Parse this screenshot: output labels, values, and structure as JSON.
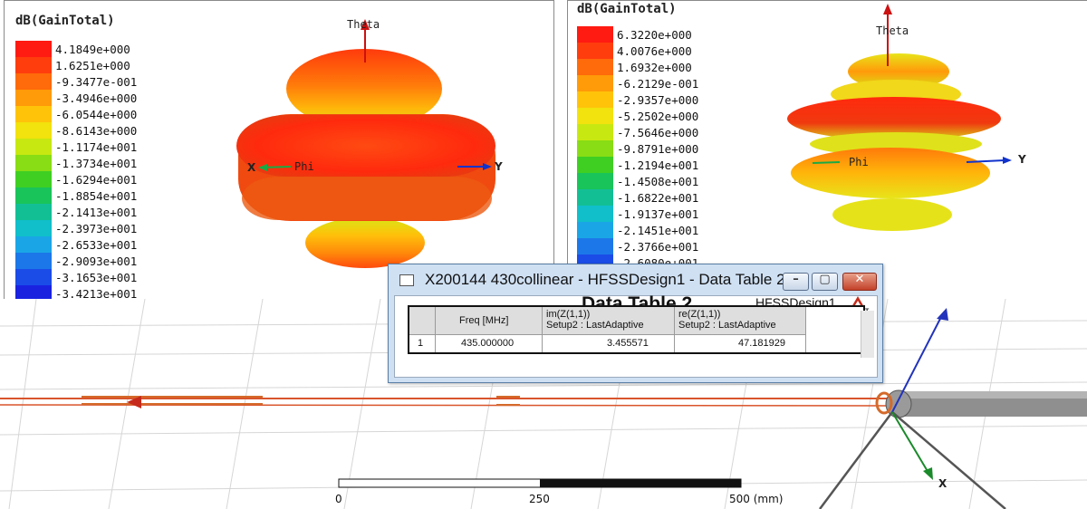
{
  "left_plot": {
    "legend_title": "dB(GainTotal)",
    "legend_values": [
      "4.1849e+000",
      "1.6251e+000",
      "-9.3477e-001",
      "-3.4946e+000",
      "-6.0544e+000",
      "-8.6143e+000",
      "-1.1174e+001",
      "-1.3734e+001",
      "-1.6294e+001",
      "-1.8854e+001",
      "-2.1413e+001",
      "-2.3973e+001",
      "-2.6533e+001",
      "-2.9093e+001",
      "-3.1653e+001",
      "-3.4213e+001"
    ],
    "axis_theta": "Theta",
    "axis_phi": "Phi",
    "axis_x": "X",
    "axis_y": "Y"
  },
  "right_plot": {
    "legend_title": "dB(GainTotal)",
    "legend_values": [
      "6.3220e+000",
      "4.0076e+000",
      "1.6932e+000",
      "-6.2129e-001",
      "-2.9357e+000",
      "-5.2502e+000",
      "-7.5646e+000",
      "-9.8791e+000",
      "-1.2194e+001",
      "-1.4508e+001",
      "-1.6822e+001",
      "-1.9137e+001",
      "-2.1451e+001",
      "-2.3766e+001",
      "-2.6080e+001"
    ],
    "axis_theta": "Theta",
    "axis_phi": "Phi",
    "axis_y": "Y"
  },
  "legend_colors": [
    "#ff1a12",
    "#ff3d0d",
    "#ff6a0a",
    "#ff9a08",
    "#ffc30a",
    "#f2e20d",
    "#c8e812",
    "#88dd14",
    "#3fcf23",
    "#19c45a",
    "#12bf95",
    "#10bfca",
    "#1aa6e6",
    "#1c78e8",
    "#1b4ce8",
    "#1a22e0"
  ],
  "model_view": {
    "scale_labels": [
      "0",
      "250",
      "500 (mm)"
    ],
    "axis_x": "X"
  },
  "data_table_window": {
    "title": "X200144 430collinear - HFSSDesign1 - Data Table 2",
    "heading": "Data Table 2",
    "design_name": "HFSSDesign1",
    "logo_text": "ANSOFT",
    "btn_minimize": "–",
    "btn_maximize": "▢",
    "btn_close": "✕",
    "columns": [
      {
        "line1": "Freq [MHz]",
        "line2": ""
      },
      {
        "line1": "im(Z(1,1))",
        "line2": "Setup2 : LastAdaptive"
      },
      {
        "line1": "re(Z(1,1))",
        "line2": "Setup2 : LastAdaptive"
      }
    ],
    "rows": [
      {
        "index": "1",
        "freq": "435.000000",
        "im": "3.455571",
        "re": "47.181929"
      }
    ]
  }
}
